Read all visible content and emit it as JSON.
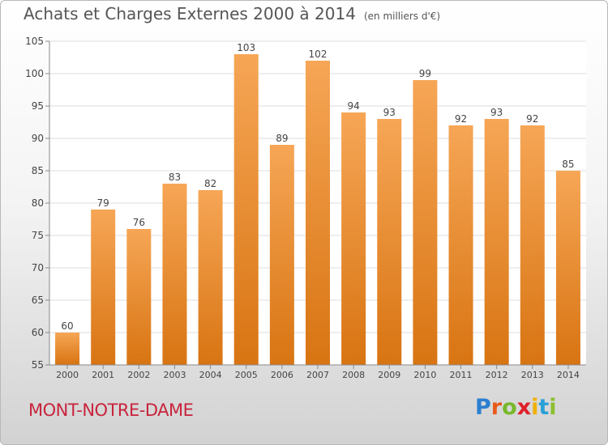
{
  "title": "Achats et Charges Externes 2000 à 2014",
  "subtitle": "(en milliers d'€)",
  "place_name": "MONT-NOTRE-DAME",
  "brand": {
    "letters": [
      "P",
      "r",
      "o",
      "x",
      "i",
      "t",
      "i"
    ],
    "colors": [
      "#2a7fd0",
      "#e85a1c",
      "#78b82a",
      "#e0202a",
      "#f0b000",
      "#2aa0d8",
      "#8cbf30"
    ]
  },
  "colors": {
    "bar_top": "#f6a656",
    "bar_bottom": "#d87412",
    "grid": "#dddddd",
    "axis": "#888888",
    "text": "#444444"
  },
  "chart_data": {
    "type": "bar",
    "categories": [
      "2000",
      "2001",
      "2002",
      "2003",
      "2004",
      "2005",
      "2006",
      "2007",
      "2008",
      "2009",
      "2010",
      "2011",
      "2012",
      "2013",
      "2014"
    ],
    "values": [
      60,
      79,
      76,
      83,
      82,
      103,
      89,
      102,
      94,
      93,
      99,
      92,
      93,
      92,
      85
    ],
    "ylim": [
      55,
      105
    ],
    "yticks": [
      55,
      60,
      65,
      70,
      75,
      80,
      85,
      90,
      95,
      100,
      105
    ],
    "grid": true,
    "xlabel": "",
    "ylabel": ""
  }
}
